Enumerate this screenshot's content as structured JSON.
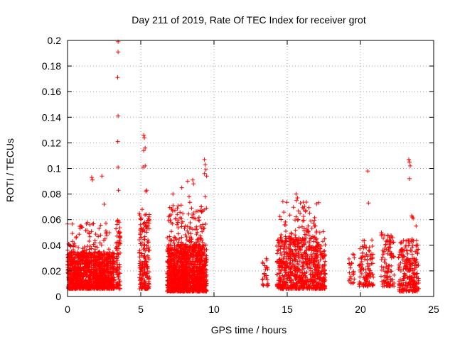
{
  "chart_data": {
    "type": "scatter",
    "title": "Day 211 of 2019, Rate Of TEC Index for receiver grot",
    "xlabel": "GPS time / hours",
    "ylabel": "ROTI / TECUs",
    "xlim": [
      0,
      25
    ],
    "ylim": [
      0,
      0.2
    ],
    "xticks": [
      0,
      5,
      10,
      15,
      20,
      25
    ],
    "yticks": [
      0,
      0.02,
      0.04,
      0.06,
      0.08,
      0.1,
      0.12,
      0.14,
      0.16,
      0.18,
      0.2
    ],
    "grid": true,
    "marker": "+",
    "color": "#ff0000",
    "clusters": [
      {
        "x": [
          0.0,
          3.2
        ],
        "y": [
          0.006,
          0.035
        ],
        "n": 1100
      },
      {
        "x": [
          0.0,
          3.0
        ],
        "y": [
          0.03,
          0.058
        ],
        "n": 110
      },
      {
        "x": [
          3.3,
          3.6
        ],
        "y": [
          0.006,
          0.06
        ],
        "n": 80
      },
      {
        "x": [
          4.9,
          5.6
        ],
        "y": [
          0.006,
          0.07
        ],
        "n": 180
      },
      {
        "x": [
          6.8,
          9.5
        ],
        "y": [
          0.004,
          0.04
        ],
        "n": 1200
      },
      {
        "x": [
          6.8,
          9.5
        ],
        "y": [
          0.04,
          0.075
        ],
        "n": 130
      },
      {
        "x": [
          13.3,
          13.7
        ],
        "y": [
          0.008,
          0.03
        ],
        "n": 25
      },
      {
        "x": [
          14.3,
          17.6
        ],
        "y": [
          0.006,
          0.045
        ],
        "n": 700
      },
      {
        "x": [
          14.5,
          17.5
        ],
        "y": [
          0.045,
          0.075
        ],
        "n": 80
      },
      {
        "x": [
          19.2,
          19.6
        ],
        "y": [
          0.01,
          0.035
        ],
        "n": 25
      },
      {
        "x": [
          19.9,
          20.9
        ],
        "y": [
          0.008,
          0.05
        ],
        "n": 110
      },
      {
        "x": [
          21.4,
          22.3
        ],
        "y": [
          0.008,
          0.05
        ],
        "n": 110
      },
      {
        "x": [
          22.6,
          24.0
        ],
        "y": [
          0.004,
          0.045
        ],
        "n": 250
      }
    ],
    "outliers": [
      [
        3.45,
        0.199
      ],
      [
        3.45,
        0.191
      ],
      [
        3.42,
        0.171
      ],
      [
        3.45,
        0.141
      ],
      [
        3.43,
        0.121
      ],
      [
        3.45,
        0.101
      ],
      [
        3.47,
        0.083
      ],
      [
        1.65,
        0.093
      ],
      [
        1.7,
        0.091
      ],
      [
        2.35,
        0.094
      ],
      [
        2.5,
        0.072
      ],
      [
        5.2,
        0.126
      ],
      [
        5.25,
        0.124
      ],
      [
        5.2,
        0.114
      ],
      [
        5.3,
        0.116
      ],
      [
        5.3,
        0.102
      ],
      [
        5.15,
        0.101
      ],
      [
        5.4,
        0.083
      ],
      [
        5.35,
        0.082
      ],
      [
        7.2,
        0.08
      ],
      [
        7.8,
        0.085
      ],
      [
        8.2,
        0.09
      ],
      [
        8.55,
        0.091
      ],
      [
        8.6,
        0.088
      ],
      [
        8.3,
        0.078
      ],
      [
        9.35,
        0.107
      ],
      [
        9.4,
        0.103
      ],
      [
        9.45,
        0.099
      ],
      [
        9.35,
        0.096
      ],
      [
        9.5,
        0.094
      ],
      [
        9.4,
        0.078
      ],
      [
        15.6,
        0.08
      ],
      [
        15.7,
        0.077
      ],
      [
        15.9,
        0.073
      ],
      [
        20.5,
        0.098
      ],
      [
        20.55,
        0.073
      ],
      [
        23.3,
        0.107
      ],
      [
        23.35,
        0.105
      ],
      [
        23.4,
        0.102
      ],
      [
        23.35,
        0.092
      ],
      [
        23.55,
        0.062
      ],
      [
        23.6,
        0.061
      ],
      [
        23.5,
        0.063
      ],
      [
        23.8,
        0.055
      ]
    ]
  }
}
